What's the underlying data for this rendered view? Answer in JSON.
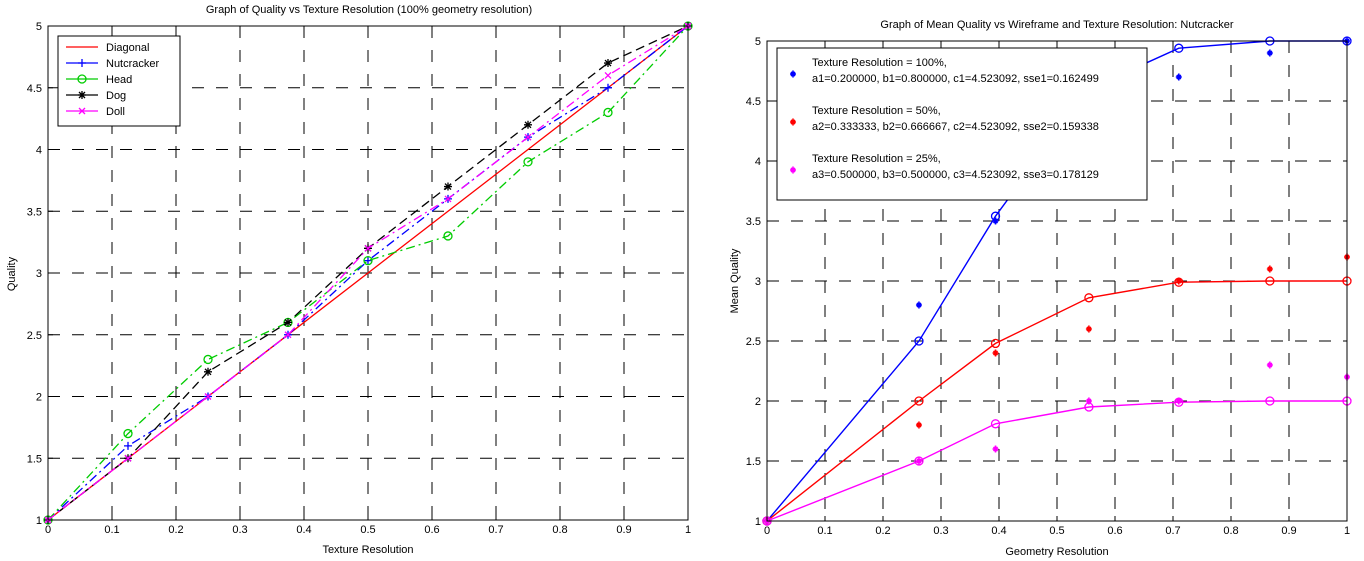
{
  "chart_data": [
    {
      "type": "line",
      "title": "Graph of Quality vs Texture Resolution (100% geometry resolution)",
      "xlabel": "Texture Resolution",
      "ylabel": "Quality",
      "xlim": [
        0,
        1
      ],
      "ylim": [
        1,
        5
      ],
      "xticks": [
        "0",
        "0.1",
        "0.2",
        "0.3",
        "0.4",
        "0.5",
        "0.6",
        "0.7",
        "0.8",
        "0.9",
        "1"
      ],
      "yticks": [
        "1",
        "1.5",
        "2",
        "2.5",
        "3",
        "3.5",
        "4",
        "4.5",
        "5"
      ],
      "grid": true,
      "legend_position": "top-left",
      "series": [
        {
          "name": "Diagonal",
          "color": "#ff0000",
          "style": "solid",
          "marker": "none",
          "x": [
            0,
            1
          ],
          "y": [
            1,
            5
          ]
        },
        {
          "name": "Nutcracker",
          "color": "#0000ff",
          "style": "dash-dot",
          "marker": "plus",
          "x": [
            0,
            0.125,
            0.25,
            0.375,
            0.5,
            0.625,
            0.75,
            0.875,
            1.0
          ],
          "y": [
            1.0,
            1.6,
            2.0,
            2.5,
            3.1,
            3.6,
            4.1,
            4.5,
            5.0
          ]
        },
        {
          "name": "Head",
          "color": "#00cc00",
          "style": "dash-dot",
          "marker": "circle",
          "x": [
            0,
            0.125,
            0.25,
            0.375,
            0.5,
            0.625,
            0.75,
            0.875,
            1.0
          ],
          "y": [
            1.0,
            1.7,
            2.3,
            2.6,
            3.1,
            3.3,
            3.9,
            4.3,
            5.0
          ]
        },
        {
          "name": "Dog",
          "color": "#000000",
          "style": "dashed",
          "marker": "star",
          "x": [
            0,
            0.125,
            0.25,
            0.375,
            0.5,
            0.625,
            0.75,
            0.875,
            1.0
          ],
          "y": [
            1.0,
            1.5,
            2.2,
            2.6,
            3.2,
            3.7,
            4.2,
            4.7,
            5.0
          ]
        },
        {
          "name": "Doll",
          "color": "#ff00ff",
          "style": "dash-dot",
          "marker": "x",
          "x": [
            0,
            0.125,
            0.25,
            0.375,
            0.5,
            0.625,
            0.75,
            0.875,
            1.0
          ],
          "y": [
            1.0,
            1.5,
            2.0,
            2.5,
            3.2,
            3.6,
            4.1,
            4.6,
            5.0
          ]
        }
      ]
    },
    {
      "type": "line",
      "title": "Graph of Mean Quality vs Wireframe and Texture Resolution: Nutcracker",
      "xlabel": "Geometry Resolution",
      "ylabel": "Mean Quality",
      "xlim": [
        0,
        1
      ],
      "ylim": [
        1,
        5
      ],
      "xticks": [
        "0",
        "0.1",
        "0.2",
        "0.3",
        "0.4",
        "0.5",
        "0.6",
        "0.7",
        "0.8",
        "0.9",
        "1"
      ],
      "yticks": [
        "1",
        "1.5",
        "2",
        "2.5",
        "3",
        "3.5",
        "4",
        "4.5",
        "5"
      ],
      "grid": true,
      "legend_position": "top",
      "legend_entries": [
        {
          "line1": "Texture Resolution = 100%,",
          "line2": "a1=0.200000, b1=0.800000, c1=4.523092, sse1=0.162499",
          "color": "#0000ff"
        },
        {
          "line1": "Texture Resolution = 50%,",
          "line2": "a2=0.333333, b2=0.666667, c2=4.523092, sse2=0.159338",
          "color": "#ff0000"
        },
        {
          "line1": "Texture Resolution = 25%,",
          "line2": "a3=0.500000, b3=0.500000, c3=4.523092, sse3=0.178129",
          "color": "#ff00ff"
        }
      ],
      "fits": [
        {
          "color": "#0000ff",
          "x": [
            0,
            0.262,
            0.394,
            0.555,
            0.71,
            0.867,
            1.0
          ],
          "y": [
            1.0,
            2.5,
            3.54,
            4.6,
            4.94,
            5.0,
            5.0
          ]
        },
        {
          "color": "#ff0000",
          "x": [
            0,
            0.262,
            0.394,
            0.555,
            0.71,
            0.867,
            1.0
          ],
          "y": [
            1.0,
            2.0,
            2.48,
            2.86,
            2.99,
            3.0,
            3.0
          ]
        },
        {
          "color": "#ff00ff",
          "x": [
            0,
            0.262,
            0.394,
            0.555,
            0.71,
            0.867,
            1.0
          ],
          "y": [
            1.0,
            1.5,
            1.81,
            1.95,
            1.99,
            2.0,
            2.0
          ]
        }
      ],
      "observations": [
        {
          "color": "#0000ff",
          "x": [
            0,
            0.262,
            0.394,
            0.555,
            0.71,
            0.867,
            1.0
          ],
          "y": [
            1.0,
            2.8,
            3.5,
            4.6,
            4.7,
            4.9,
            5.0
          ]
        },
        {
          "color": "#ff0000",
          "x": [
            0,
            0.262,
            0.394,
            0.555,
            0.71,
            0.867,
            1.0
          ],
          "y": [
            1.0,
            1.8,
            2.4,
            2.6,
            3.0,
            3.1,
            3.2
          ]
        },
        {
          "color": "#ff00ff",
          "x": [
            0,
            0.262,
            0.394,
            0.555,
            0.71,
            0.867,
            1.0
          ],
          "y": [
            1.0,
            1.5,
            1.6,
            2.0,
            2.0,
            2.3,
            2.2
          ]
        }
      ]
    }
  ]
}
